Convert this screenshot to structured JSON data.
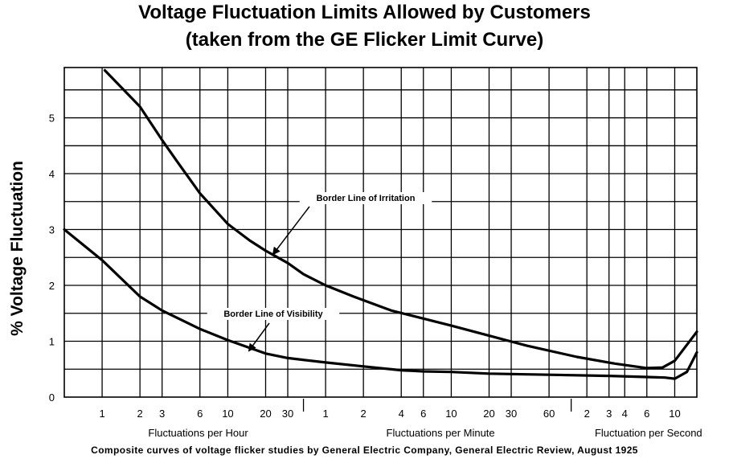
{
  "chart_data": {
    "type": "line",
    "title": "Voltage Fluctuation Limits Allowed by Customers",
    "subtitle": "(taken from the GE Flicker Limit Curve)",
    "ylabel": "% Voltage Fluctuation",
    "ylim": [
      0,
      5.9
    ],
    "y_ticks": [
      "0",
      "1",
      "2",
      "3",
      "4",
      "5"
    ],
    "grid": true,
    "x_scale": "log",
    "x_unit": "fluctuations per hour",
    "x_groups": [
      {
        "label": "Fluctuations per Hour",
        "ticks": [
          {
            "text": "1",
            "v": 1
          },
          {
            "text": "2",
            "v": 2
          },
          {
            "text": "3",
            "v": 3
          },
          {
            "text": "6",
            "v": 6
          },
          {
            "text": "10",
            "v": 10
          },
          {
            "text": "20",
            "v": 20
          },
          {
            "text": "30",
            "v": 30
          }
        ]
      },
      {
        "label": "Fluctuations per Minute",
        "ticks": [
          {
            "text": "1",
            "v": 60
          },
          {
            "text": "2",
            "v": 120
          },
          {
            "text": "4",
            "v": 240
          },
          {
            "text": "6",
            "v": 360
          },
          {
            "text": "10",
            "v": 600
          },
          {
            "text": "20",
            "v": 1200
          },
          {
            "text": "30",
            "v": 1800
          },
          {
            "text": "60",
            "v": 3600
          }
        ]
      },
      {
        "label": "Fluctuation per Second",
        "ticks": [
          {
            "text": "2",
            "v": 7200
          },
          {
            "text": "3",
            "v": 10800
          },
          {
            "text": "4",
            "v": 14400
          },
          {
            "text": "6",
            "v": 21600
          },
          {
            "text": "10",
            "v": 36000
          }
        ]
      }
    ],
    "series": [
      {
        "name": "Border Line of Irritation",
        "x": [
          1.05,
          2,
          3,
          4,
          6,
          10,
          15,
          20,
          30,
          40,
          60,
          100,
          200,
          300,
          600,
          1200,
          2400,
          6000,
          12000,
          21600,
          28800,
          36000,
          54000
        ],
        "y": [
          5.85,
          5.2,
          4.6,
          4.2,
          3.65,
          3.1,
          2.8,
          2.62,
          2.4,
          2.2,
          2.0,
          1.8,
          1.55,
          1.45,
          1.28,
          1.1,
          0.92,
          0.72,
          0.6,
          0.52,
          0.53,
          0.65,
          1.17
        ]
      },
      {
        "name": "Border Line of Visibility",
        "x": [
          0.5,
          1,
          2,
          3,
          6,
          10,
          20,
          30,
          60,
          120,
          240,
          360,
          600,
          1200,
          3600,
          10800,
          21600,
          30000,
          36000,
          45000,
          54000
        ],
        "y": [
          3.0,
          2.45,
          1.8,
          1.55,
          1.22,
          1.02,
          0.78,
          0.7,
          0.62,
          0.55,
          0.48,
          0.46,
          0.45,
          0.42,
          0.4,
          0.38,
          0.36,
          0.35,
          0.33,
          0.45,
          0.8
        ]
      }
    ],
    "annotations": [
      {
        "text": "Border Line of Irritation",
        "series": 0,
        "x": 25,
        "y": 2.5
      },
      {
        "text": "Border Line of Visibility",
        "series": 1,
        "x": 16,
        "y": 0.75
      }
    ]
  },
  "footer": "Composite curves of voltage flicker studies by General Electric Company, General Electric Review, August 1925"
}
